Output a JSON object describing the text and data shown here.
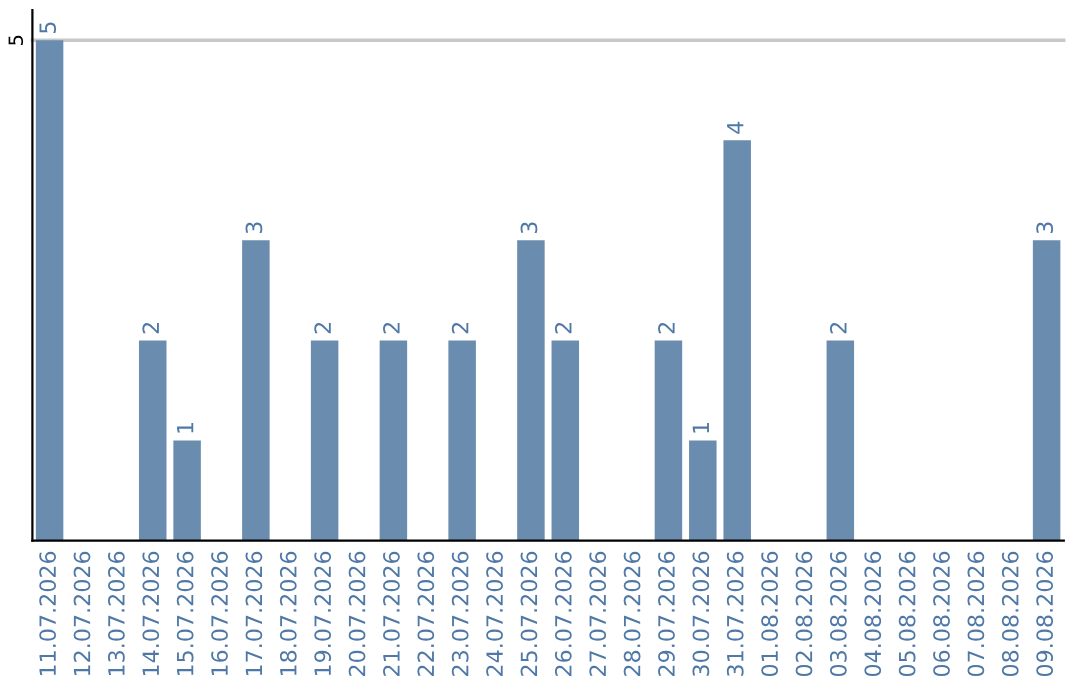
{
  "chart_data": {
    "type": "bar",
    "categories": [
      "11.07.2026",
      "12.07.2026",
      "13.07.2026",
      "14.07.2026",
      "15.07.2026",
      "16.07.2026",
      "17.07.2026",
      "18.07.2026",
      "19.07.2026",
      "20.07.2026",
      "21.07.2026",
      "22.07.2026",
      "23.07.2026",
      "24.07.2026",
      "25.07.2026",
      "26.07.2026",
      "27.07.2026",
      "28.07.2026",
      "29.07.2026",
      "30.07.2026",
      "31.07.2026",
      "01.08.2026",
      "02.08.2026",
      "03.08.2026",
      "04.08.2026",
      "05.08.2026",
      "06.08.2026",
      "07.08.2026",
      "08.08.2026",
      "09.08.2026"
    ],
    "values": [
      5,
      0,
      0,
      2,
      1,
      0,
      3,
      0,
      2,
      0,
      2,
      0,
      2,
      0,
      3,
      2,
      0,
      0,
      2,
      1,
      4,
      0,
      0,
      2,
      0,
      0,
      0,
      0,
      0,
      3
    ],
    "value_labels": [
      "5",
      null,
      null,
      "2",
      "1",
      null,
      "3",
      null,
      "2",
      null,
      "2",
      null,
      "2",
      null,
      "3",
      "2",
      null,
      null,
      "2",
      "1",
      "4",
      null,
      null,
      "2",
      null,
      null,
      null,
      null,
      null,
      "3"
    ],
    "color": "#6a8caf",
    "ylim": [
      0,
      5.3
    ],
    "yticks": [
      5
    ],
    "grid": "y"
  }
}
